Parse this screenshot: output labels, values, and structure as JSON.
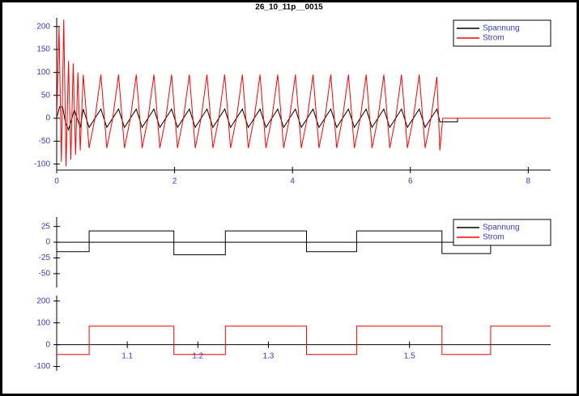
{
  "chart_data": [
    {
      "type": "line",
      "title": "26_10_11p__0015",
      "legend": "upper right",
      "xlim": [
        0,
        8.38
      ],
      "xticks": [
        0,
        2,
        4,
        6,
        8
      ],
      "ylim": [
        -113,
        219
      ],
      "yticks": [
        -100,
        -50,
        0,
        50,
        100,
        150,
        200
      ],
      "series": [
        {
          "name": "Spannung",
          "color": "#000000",
          "x": [
            0,
            0.05,
            0.1,
            0.15,
            0.2,
            0.3,
            0.4,
            0.45,
            0.55,
            0.65,
            0.75,
            0.85,
            0.95,
            1.05,
            1.15,
            1.25,
            1.35,
            1.45,
            1.55,
            1.65,
            1.75,
            1.85,
            1.95,
            2.05,
            2.15,
            2.25,
            2.35,
            2.45,
            2.55,
            2.65,
            2.75,
            2.85,
            2.95,
            3.05,
            3.15,
            3.25,
            3.35,
            3.45,
            3.55,
            3.65,
            3.75,
            3.85,
            3.95,
            4.05,
            4.15,
            4.25,
            4.35,
            4.45,
            4.55,
            4.65,
            4.75,
            4.85,
            4.95,
            5.05,
            5.15,
            5.25,
            5.35,
            5.45,
            5.55,
            5.65,
            5.75,
            5.85,
            5.95,
            6.05,
            6.15,
            6.25,
            6.35,
            6.45,
            6.5,
            6.8,
            6.8,
            8.38
          ],
          "values": [
            0,
            25,
            25,
            -10,
            -25,
            18,
            -20,
            20,
            -20,
            0,
            20,
            -20,
            0,
            20,
            -20,
            0,
            20,
            -20,
            0,
            20,
            -20,
            0,
            20,
            -20,
            0,
            20,
            -20,
            0,
            20,
            -20,
            0,
            20,
            -20,
            0,
            20,
            -20,
            0,
            20,
            -20,
            0,
            20,
            -20,
            0,
            20,
            -20,
            0,
            20,
            -20,
            0,
            20,
            -20,
            0,
            20,
            -20,
            0,
            20,
            -20,
            0,
            20,
            -20,
            0,
            20,
            -20,
            0,
            20,
            -20,
            0,
            20,
            -8,
            -8,
            0,
            0
          ]
        },
        {
          "name": "Strom",
          "color": "#ff0000",
          "x": [
            0,
            0.04,
            0.08,
            0.12,
            0.16,
            0.2,
            0.24,
            0.28,
            0.32,
            0.36,
            0.4,
            0.45,
            0.55,
            0.65,
            0.75,
            0.85,
            0.95,
            1.05,
            1.15,
            1.25,
            1.35,
            1.45,
            1.55,
            1.65,
            1.75,
            1.85,
            1.95,
            2.05,
            2.15,
            2.25,
            2.35,
            2.45,
            2.55,
            2.65,
            2.75,
            2.85,
            2.95,
            3.05,
            3.15,
            3.25,
            3.35,
            3.45,
            3.55,
            3.65,
            3.75,
            3.85,
            3.95,
            4.05,
            4.15,
            4.25,
            4.35,
            4.45,
            4.55,
            4.65,
            4.75,
            4.85,
            4.95,
            5.05,
            5.15,
            5.25,
            5.35,
            5.45,
            5.55,
            5.65,
            5.75,
            5.85,
            5.95,
            6.05,
            6.15,
            6.25,
            6.35,
            6.45,
            6.5,
            6.55,
            8.38
          ],
          "values": [
            0,
            200,
            -95,
            215,
            -105,
            125,
            -90,
            120,
            -80,
            100,
            -70,
            95,
            -65,
            0,
            95,
            -65,
            0,
            95,
            -65,
            0,
            95,
            -65,
            0,
            95,
            -65,
            0,
            95,
            -65,
            0,
            95,
            -65,
            0,
            95,
            -65,
            0,
            95,
            -65,
            0,
            95,
            -65,
            0,
            95,
            -65,
            0,
            95,
            -65,
            0,
            95,
            -65,
            0,
            95,
            -65,
            0,
            95,
            -65,
            0,
            95,
            -65,
            0,
            95,
            -65,
            0,
            95,
            -65,
            0,
            95,
            -65,
            0,
            95,
            -65,
            0,
            90,
            -70,
            0,
            0
          ]
        }
      ]
    },
    {
      "type": "line",
      "legend": "upper right",
      "xlim": [
        1.0,
        1.7
      ],
      "ylim": [
        -72,
        40
      ],
      "yticks": [
        -50,
        -25,
        0,
        25
      ],
      "series": [
        {
          "name": "Spannung",
          "color": "#000000",
          "x": [
            1.0,
            1.046,
            1.046,
            1.166,
            1.166,
            1.239,
            1.239,
            1.354,
            1.354,
            1.425,
            1.425,
            1.546,
            1.546,
            1.615,
            1.615,
            1.7
          ],
          "values": [
            -15,
            -15,
            18,
            18,
            -20,
            -20,
            18,
            18,
            -15,
            -15,
            18,
            18,
            -18,
            -18,
            18,
            18
          ]
        }
      ]
    },
    {
      "type": "line",
      "xlim": [
        1.0,
        1.7
      ],
      "xticks": [
        1.1,
        1.2,
        1.3,
        1.5
      ],
      "ylim": [
        -120,
        225
      ],
      "yticks": [
        -100,
        0,
        100,
        200
      ],
      "series": [
        {
          "name": "Strom",
          "color": "#ff0000",
          "x": [
            1.0,
            1.046,
            1.046,
            1.166,
            1.166,
            1.239,
            1.239,
            1.354,
            1.354,
            1.425,
            1.425,
            1.546,
            1.546,
            1.615,
            1.615,
            1.7
          ],
          "values": [
            -45,
            -45,
            85,
            85,
            -45,
            -45,
            85,
            85,
            -45,
            -45,
            85,
            85,
            -45,
            -45,
            85,
            85
          ]
        }
      ]
    }
  ]
}
